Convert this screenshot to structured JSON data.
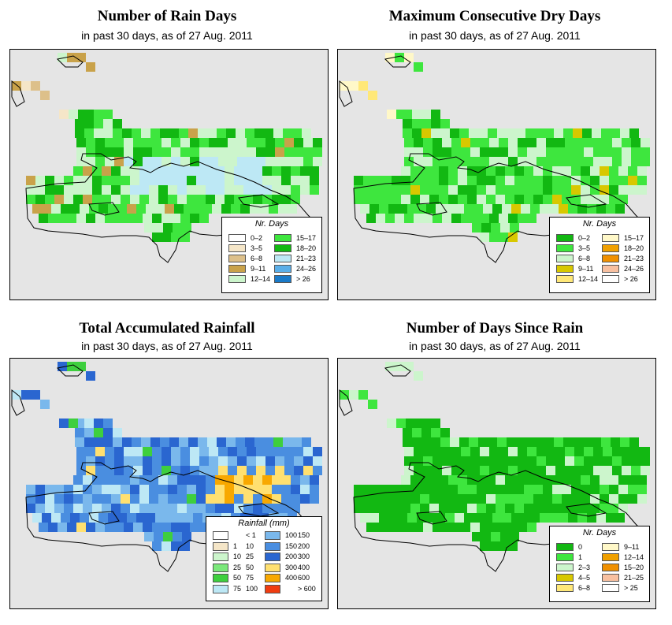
{
  "panels": [
    {
      "title": "Number of Rain Days",
      "subtitle": "in past 30 days, as of  27 Aug. 2011",
      "legend": {
        "title": "Nr. Days",
        "items": [
          {
            "label": "0–2",
            "color": "#ffffff"
          },
          {
            "label": "3–5",
            "color": "#f5e6c8"
          },
          {
            "label": "6–8",
            "color": "#ddc08a"
          },
          {
            "label": "9–11",
            "color": "#c9a24a"
          },
          {
            "label": "12–14",
            "color": "#ccf5cc"
          },
          {
            "label": "15–17",
            "color": "#3ee63e"
          },
          {
            "label": "18–20",
            "color": "#12b812"
          },
          {
            "label": "21–23",
            "color": "#bde8f5"
          },
          {
            "label": "24–26",
            "color": "#5aaee8"
          },
          {
            "label": "> 26",
            "color": "#1a7ac8"
          }
        ]
      }
    },
    {
      "title": "Maximum Consecutive Dry Days",
      "subtitle": "in past 30 days, as of  27 Aug. 2011",
      "legend": {
        "title": "Nr. Days",
        "items": [
          {
            "label": "0–2",
            "color": "#12b812"
          },
          {
            "label": "3–5",
            "color": "#3ee63e"
          },
          {
            "label": "6–8",
            "color": "#ccf5cc"
          },
          {
            "label": "9–11",
            "color": "#d8c800"
          },
          {
            "label": "12–14",
            "color": "#ffe878"
          },
          {
            "label": "15–17",
            "color": "#fff8c8"
          },
          {
            "label": "18–20",
            "color": "#f0a000"
          },
          {
            "label": "21–23",
            "color": "#f09000"
          },
          {
            "label": "24–26",
            "color": "#f8c0a0"
          },
          {
            "label": "> 26",
            "color": "#ffffff"
          }
        ]
      }
    },
    {
      "title": "Total Accumulated Rainfall",
      "subtitle": "in past 30 days, as of  27 Aug. 2011",
      "legend": {
        "title": "Rainfall (mm)",
        "items": [
          {
            "lo": "",
            "hi": "< 1",
            "color": "#ffffff"
          },
          {
            "lo": "1",
            "hi": "10",
            "color": "#f5e6c8"
          },
          {
            "lo": "10",
            "hi": "25",
            "color": "#ccf5cc"
          },
          {
            "lo": "25",
            "hi": "50",
            "color": "#7be87b"
          },
          {
            "lo": "50",
            "hi": "75",
            "color": "#3ecf3e"
          },
          {
            "lo": "75",
            "hi": "100",
            "color": "#bde8f5"
          },
          {
            "lo": "100",
            "hi": "150",
            "color": "#7ab8ec"
          },
          {
            "lo": "150",
            "hi": "200",
            "color": "#4a8ee0"
          },
          {
            "lo": "200",
            "hi": "300",
            "color": "#2a66d0"
          },
          {
            "lo": "300",
            "hi": "400",
            "color": "#ffe070"
          },
          {
            "lo": "400",
            "hi": "600",
            "color": "#f8a800"
          },
          {
            "lo": "",
            "hi": "> 600",
            "color": "#f03c10"
          }
        ]
      }
    },
    {
      "title": "Number of Days Since Rain",
      "subtitle": "in past 30 days, as of  27 Aug. 2011",
      "legend": {
        "title": "Nr. Days",
        "items": [
          {
            "label": "0",
            "color": "#12b812"
          },
          {
            "label": "1",
            "color": "#3ee63e"
          },
          {
            "label": "2–3",
            "color": "#ccf5cc"
          },
          {
            "label": "4–5",
            "color": "#d8c800"
          },
          {
            "label": "6–8",
            "color": "#ffe878"
          },
          {
            "label": "9–11",
            "color": "#fff8c8"
          },
          {
            "label": "12–14",
            "color": "#f0a000"
          },
          {
            "label": "15–20",
            "color": "#f09000"
          },
          {
            "label": "21–25",
            "color": "#f8c0a0"
          },
          {
            "label": "> 25",
            "color": "#ffffff"
          }
        ]
      }
    }
  ]
}
